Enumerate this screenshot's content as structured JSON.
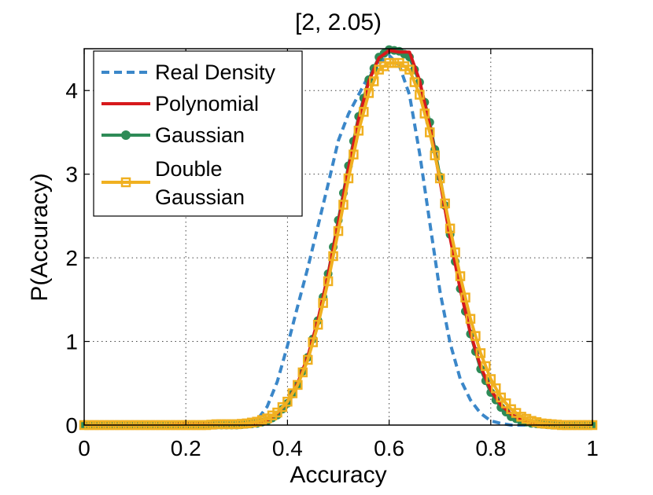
{
  "colors": {
    "real_density": "#3b87c9",
    "polynomial": "#d7191c",
    "gaussian": "#2e8b57",
    "double_gaussian": "#f0b020"
  },
  "chart_data": {
    "type": "line",
    "title": "[2, 2.05)",
    "xlabel": "Accuracy",
    "ylabel": "P(Accuracy)",
    "xlim": [
      0,
      1
    ],
    "ylim": [
      0,
      4.5
    ],
    "xticks": [
      0,
      0.2,
      0.4,
      0.6,
      0.8,
      1
    ],
    "xtick_labels": [
      "0",
      "0.2",
      "0.4",
      "0.6",
      "0.8",
      "1"
    ],
    "yticks": [
      0,
      1,
      2,
      3,
      4
    ],
    "ytick_labels": [
      "0",
      "1",
      "2",
      "3",
      "4"
    ],
    "grid": true,
    "legend_position": "top-left",
    "x": [
      0,
      0.02,
      0.04,
      0.06,
      0.08,
      0.1,
      0.12,
      0.14,
      0.16,
      0.18,
      0.2,
      0.22,
      0.24,
      0.26,
      0.28,
      0.3,
      0.32,
      0.34,
      0.36,
      0.38,
      0.4,
      0.42,
      0.44,
      0.46,
      0.48,
      0.5,
      0.52,
      0.54,
      0.56,
      0.58,
      0.6,
      0.62,
      0.64,
      0.66,
      0.68,
      0.7,
      0.72,
      0.74,
      0.76,
      0.78,
      0.8,
      0.82,
      0.84,
      0.86,
      0.88,
      0.9,
      0.92,
      0.94,
      0.96,
      0.98,
      1
    ],
    "series": [
      {
        "name": "Real Density",
        "style": "dashed",
        "color_key": "real_density",
        "values": [
          0,
          0,
          0,
          0,
          0,
          0,
          0,
          0,
          0,
          0,
          0,
          0,
          0,
          0,
          0,
          0,
          0.01,
          0.06,
          0.22,
          0.52,
          0.95,
          1.42,
          1.88,
          2.38,
          2.88,
          3.4,
          3.72,
          3.95,
          4.18,
          4.32,
          4.42,
          4.3,
          3.95,
          3.25,
          2.42,
          1.6,
          0.98,
          0.55,
          0.3,
          0.14,
          0.05,
          0.02,
          0,
          0,
          0,
          0,
          0,
          0,
          0,
          0,
          0
        ]
      },
      {
        "name": "Polynomial",
        "style": "solid",
        "color_key": "polynomial",
        "values": [
          0,
          0,
          0,
          0,
          0,
          0,
          0,
          0,
          0,
          0.01,
          0.01,
          0.01,
          0.01,
          0.01,
          0.01,
          0.01,
          0.02,
          0.02,
          0.06,
          0.14,
          0.28,
          0.5,
          0.82,
          1.26,
          1.8,
          2.42,
          3.07,
          3.66,
          4.11,
          4.39,
          4.48,
          4.46,
          4.46,
          4.12,
          3.58,
          2.92,
          2.24,
          1.62,
          1.1,
          0.7,
          0.42,
          0.24,
          0.13,
          0.06,
          0.03,
          0.01,
          0.01,
          0,
          0,
          0,
          0
        ]
      },
      {
        "name": "Gaussian",
        "style": "solid-marker-circle",
        "color_key": "gaussian",
        "values": [
          0,
          0,
          0,
          0,
          0,
          0,
          0,
          0,
          0,
          0,
          0,
          0,
          0,
          0,
          0,
          0,
          0.01,
          0.02,
          0.05,
          0.12,
          0.26,
          0.48,
          0.81,
          1.25,
          1.81,
          2.45,
          3.1,
          3.69,
          4.13,
          4.4,
          4.49,
          4.47,
          4.4,
          4.1,
          3.62,
          2.97,
          2.28,
          1.63,
          1.09,
          0.67,
          0.39,
          0.21,
          0.1,
          0.05,
          0.02,
          0.01,
          0,
          0,
          0,
          0,
          0
        ]
      },
      {
        "name": "Double Gaussian",
        "name_lines": [
          "Double",
          "Gaussian"
        ],
        "style": "solid-marker-square",
        "color_key": "double_gaussian",
        "values": [
          0,
          0,
          0,
          0,
          0,
          0,
          0,
          0,
          0,
          0,
          0,
          0,
          0,
          0.01,
          0.01,
          0.01,
          0.02,
          0.04,
          0.08,
          0.15,
          0.28,
          0.48,
          0.78,
          1.2,
          1.72,
          2.32,
          2.95,
          3.52,
          3.97,
          4.25,
          4.33,
          4.33,
          4.25,
          3.95,
          3.5,
          2.95,
          2.35,
          1.78,
          1.27,
          0.86,
          0.55,
          0.33,
          0.19,
          0.1,
          0.05,
          0.02,
          0.01,
          0,
          0,
          0,
          0
        ]
      }
    ]
  }
}
